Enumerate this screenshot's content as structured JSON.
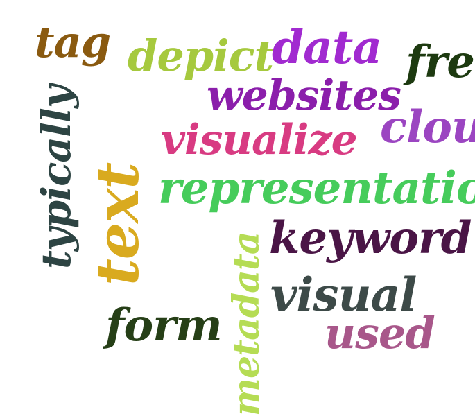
{
  "words": {
    "tag": {
      "text": "tag",
      "color": "#8a5a10"
    },
    "depict": {
      "text": "depict",
      "color": "#a6c93e"
    },
    "data": {
      "text": "data",
      "color": "#a12ad0"
    },
    "free": {
      "text": "free",
      "color": "#1d3a10"
    },
    "websites": {
      "text": "websites",
      "color": "#8b1eab"
    },
    "cloud": {
      "text": "cloud",
      "color": "#9b45c1"
    },
    "visualize": {
      "text": "visualize",
      "color": "#d83b82"
    },
    "representation": {
      "text": "representation",
      "color": "#46cc5b"
    },
    "keyword": {
      "text": "keyword",
      "color": "#4a1546"
    },
    "visual": {
      "text": "visual",
      "color": "#3d4a48"
    },
    "used": {
      "text": "used",
      "color": "#a8578a"
    },
    "form": {
      "text": "form",
      "color": "#263f17"
    },
    "typically": {
      "text": "typically",
      "color": "#2d4443"
    },
    "text": {
      "text": "text",
      "color": "#d9aa1f"
    },
    "metadata": {
      "text": "metadata",
      "color": "#b5dc54"
    }
  }
}
